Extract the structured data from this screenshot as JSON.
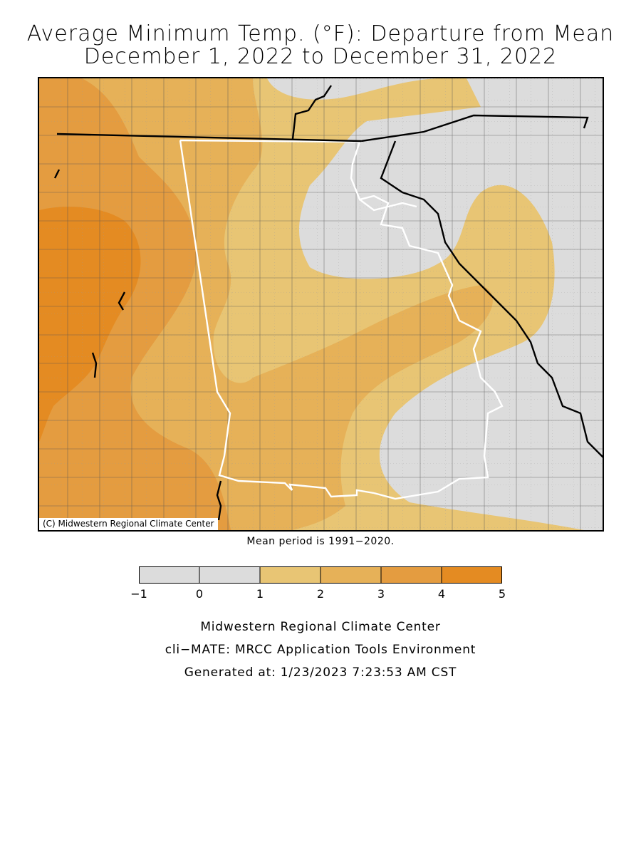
{
  "title_line1": "Average Minimum Temp. (°F): Departure from Mean",
  "title_line2": "December 1, 2022 to December 31, 2022",
  "copyright": "(C) Midwestern Regional Climate Center",
  "mean_note": "Mean period is 1991−2020.",
  "legend": {
    "ticks": [
      "−1",
      "0",
      "1",
      "2",
      "3",
      "4",
      "5"
    ],
    "colors": [
      "#dcdcdc",
      "#dcdcdc",
      "#e8c574",
      "#e6b158",
      "#e49c40",
      "#e48b22"
    ]
  },
  "footer": {
    "line1": "Midwestern Regional Climate Center",
    "line2": "cli−MATE: MRCC Application Tools Environment",
    "line3": "Generated at: 1/23/2023 7:23:53 AM CST"
  },
  "colors": {
    "band_neg1_1": "#dcdcdc",
    "band_1_2": "#e8c574",
    "band_2_3": "#e6b158",
    "band_3_4": "#e49c40",
    "band_4_5": "#e48b22",
    "state_border": "#ffffff",
    "national_border": "#000000"
  }
}
